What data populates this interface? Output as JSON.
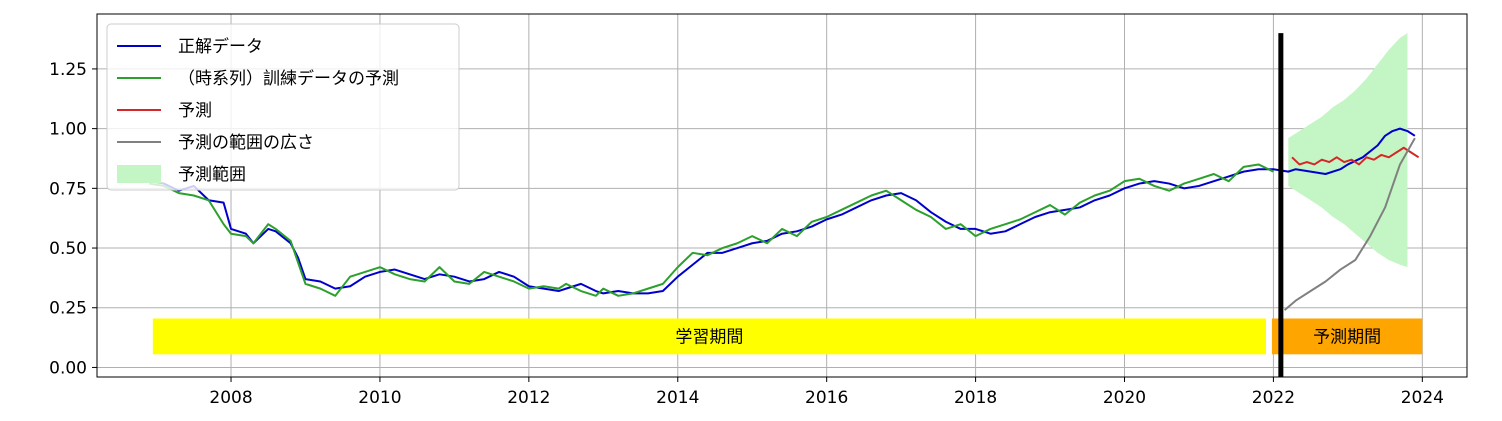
{
  "chart_data": {
    "type": "line",
    "title": "",
    "xlabel": "",
    "ylabel": "",
    "xlim": [
      2006.2,
      2024.6
    ],
    "ylim": [
      -0.04,
      1.48
    ],
    "x_ticks": [
      2008,
      2010,
      2012,
      2014,
      2016,
      2018,
      2020,
      2022,
      2024
    ],
    "y_ticks": [
      0.0,
      0.25,
      0.5,
      0.75,
      1.0,
      1.25
    ],
    "y_tick_labels": [
      "0.00",
      "0.25",
      "0.50",
      "0.75",
      "1.00",
      "1.25"
    ],
    "grid": true,
    "legend_position": "top-left",
    "legend": [
      {
        "label": "正解データ",
        "color": "#0000cc",
        "kind": "line"
      },
      {
        "label": "（時系列）訓練データの予測",
        "color": "#2ca02c",
        "kind": "line"
      },
      {
        "label": "予測",
        "color": "#d62728",
        "kind": "line"
      },
      {
        "label": "予測の範囲の広さ",
        "color": "#808080",
        "kind": "line"
      },
      {
        "label": "予測範囲",
        "color": "#c4f5c4",
        "kind": "area"
      }
    ],
    "annotations": [
      {
        "label": "学習期間",
        "x_start": 2006.95,
        "x_end": 2021.9,
        "y_bottom": 0.055,
        "y_top": 0.205,
        "color": "#ffff00"
      },
      {
        "label": "予測期間",
        "x_start": 2021.98,
        "x_end": 2024.0,
        "y_bottom": 0.055,
        "y_top": 0.205,
        "color": "#ffa500"
      }
    ],
    "vline": {
      "x": 2022.1,
      "y_top": 1.4,
      "color": "#000000"
    },
    "series": [
      {
        "name": "正解データ",
        "color": "#0000cc",
        "points": [
          [
            2006.9,
            0.78
          ],
          [
            2007.1,
            0.77
          ],
          [
            2007.3,
            0.74
          ],
          [
            2007.5,
            0.76
          ],
          [
            2007.7,
            0.7
          ],
          [
            2007.9,
            0.69
          ],
          [
            2008.0,
            0.58
          ],
          [
            2008.2,
            0.56
          ],
          [
            2008.3,
            0.52
          ],
          [
            2008.5,
            0.58
          ],
          [
            2008.6,
            0.57
          ],
          [
            2008.8,
            0.52
          ],
          [
            2008.9,
            0.46
          ],
          [
            2009.0,
            0.37
          ],
          [
            2009.2,
            0.36
          ],
          [
            2009.4,
            0.33
          ],
          [
            2009.6,
            0.34
          ],
          [
            2009.8,
            0.38
          ],
          [
            2010.0,
            0.4
          ],
          [
            2010.2,
            0.41
          ],
          [
            2010.4,
            0.39
          ],
          [
            2010.6,
            0.37
          ],
          [
            2010.8,
            0.39
          ],
          [
            2011.0,
            0.38
          ],
          [
            2011.2,
            0.36
          ],
          [
            2011.4,
            0.37
          ],
          [
            2011.6,
            0.4
          ],
          [
            2011.8,
            0.38
          ],
          [
            2012.0,
            0.34
          ],
          [
            2012.2,
            0.33
          ],
          [
            2012.4,
            0.32
          ],
          [
            2012.5,
            0.33
          ],
          [
            2012.7,
            0.35
          ],
          [
            2012.9,
            0.32
          ],
          [
            2013.0,
            0.31
          ],
          [
            2013.2,
            0.32
          ],
          [
            2013.4,
            0.31
          ],
          [
            2013.6,
            0.31
          ],
          [
            2013.8,
            0.32
          ],
          [
            2014.0,
            0.38
          ],
          [
            2014.2,
            0.43
          ],
          [
            2014.4,
            0.48
          ],
          [
            2014.6,
            0.48
          ],
          [
            2014.8,
            0.5
          ],
          [
            2015.0,
            0.52
          ],
          [
            2015.2,
            0.53
          ],
          [
            2015.4,
            0.56
          ],
          [
            2015.6,
            0.57
          ],
          [
            2015.8,
            0.59
          ],
          [
            2016.0,
            0.62
          ],
          [
            2016.2,
            0.64
          ],
          [
            2016.4,
            0.67
          ],
          [
            2016.6,
            0.7
          ],
          [
            2016.8,
            0.72
          ],
          [
            2017.0,
            0.73
          ],
          [
            2017.2,
            0.7
          ],
          [
            2017.4,
            0.65
          ],
          [
            2017.6,
            0.61
          ],
          [
            2017.8,
            0.58
          ],
          [
            2018.0,
            0.58
          ],
          [
            2018.2,
            0.56
          ],
          [
            2018.4,
            0.57
          ],
          [
            2018.6,
            0.6
          ],
          [
            2018.8,
            0.63
          ],
          [
            2019.0,
            0.65
          ],
          [
            2019.2,
            0.66
          ],
          [
            2019.4,
            0.67
          ],
          [
            2019.6,
            0.7
          ],
          [
            2019.8,
            0.72
          ],
          [
            2020.0,
            0.75
          ],
          [
            2020.2,
            0.77
          ],
          [
            2020.4,
            0.78
          ],
          [
            2020.6,
            0.77
          ],
          [
            2020.8,
            0.75
          ],
          [
            2021.0,
            0.76
          ],
          [
            2021.2,
            0.78
          ],
          [
            2021.4,
            0.8
          ],
          [
            2021.6,
            0.82
          ],
          [
            2021.8,
            0.83
          ],
          [
            2022.0,
            0.83
          ],
          [
            2022.2,
            0.82
          ],
          [
            2022.3,
            0.83
          ],
          [
            2022.5,
            0.82
          ],
          [
            2022.7,
            0.81
          ],
          [
            2022.9,
            0.83
          ],
          [
            2023.0,
            0.85
          ],
          [
            2023.2,
            0.88
          ],
          [
            2023.4,
            0.93
          ],
          [
            2023.5,
            0.97
          ],
          [
            2023.6,
            0.99
          ],
          [
            2023.7,
            1.0
          ],
          [
            2023.8,
            0.99
          ],
          [
            2023.9,
            0.97
          ]
        ]
      },
      {
        "name": "（時系列）訓練データの予測",
        "color": "#2ca02c",
        "points": [
          [
            2006.9,
            0.77
          ],
          [
            2007.1,
            0.76
          ],
          [
            2007.3,
            0.73
          ],
          [
            2007.5,
            0.72
          ],
          [
            2007.7,
            0.7
          ],
          [
            2007.9,
            0.6
          ],
          [
            2008.0,
            0.56
          ],
          [
            2008.2,
            0.55
          ],
          [
            2008.3,
            0.52
          ],
          [
            2008.5,
            0.6
          ],
          [
            2008.6,
            0.58
          ],
          [
            2008.8,
            0.53
          ],
          [
            2008.9,
            0.44
          ],
          [
            2009.0,
            0.35
          ],
          [
            2009.2,
            0.33
          ],
          [
            2009.4,
            0.3
          ],
          [
            2009.6,
            0.38
          ],
          [
            2009.8,
            0.4
          ],
          [
            2010.0,
            0.42
          ],
          [
            2010.2,
            0.39
          ],
          [
            2010.4,
            0.37
          ],
          [
            2010.6,
            0.36
          ],
          [
            2010.8,
            0.42
          ],
          [
            2011.0,
            0.36
          ],
          [
            2011.2,
            0.35
          ],
          [
            2011.4,
            0.4
          ],
          [
            2011.6,
            0.38
          ],
          [
            2011.8,
            0.36
          ],
          [
            2012.0,
            0.33
          ],
          [
            2012.2,
            0.34
          ],
          [
            2012.4,
            0.33
          ],
          [
            2012.5,
            0.35
          ],
          [
            2012.7,
            0.32
          ],
          [
            2012.9,
            0.3
          ],
          [
            2013.0,
            0.33
          ],
          [
            2013.2,
            0.3
          ],
          [
            2013.4,
            0.31
          ],
          [
            2013.6,
            0.33
          ],
          [
            2013.8,
            0.35
          ],
          [
            2014.0,
            0.42
          ],
          [
            2014.2,
            0.48
          ],
          [
            2014.4,
            0.47
          ],
          [
            2014.6,
            0.5
          ],
          [
            2014.8,
            0.52
          ],
          [
            2015.0,
            0.55
          ],
          [
            2015.2,
            0.52
          ],
          [
            2015.4,
            0.58
          ],
          [
            2015.6,
            0.55
          ],
          [
            2015.8,
            0.61
          ],
          [
            2016.0,
            0.63
          ],
          [
            2016.2,
            0.66
          ],
          [
            2016.4,
            0.69
          ],
          [
            2016.6,
            0.72
          ],
          [
            2016.8,
            0.74
          ],
          [
            2017.0,
            0.7
          ],
          [
            2017.2,
            0.66
          ],
          [
            2017.4,
            0.63
          ],
          [
            2017.6,
            0.58
          ],
          [
            2017.8,
            0.6
          ],
          [
            2018.0,
            0.55
          ],
          [
            2018.2,
            0.58
          ],
          [
            2018.4,
            0.6
          ],
          [
            2018.6,
            0.62
          ],
          [
            2018.8,
            0.65
          ],
          [
            2019.0,
            0.68
          ],
          [
            2019.2,
            0.64
          ],
          [
            2019.4,
            0.69
          ],
          [
            2019.6,
            0.72
          ],
          [
            2019.8,
            0.74
          ],
          [
            2020.0,
            0.78
          ],
          [
            2020.2,
            0.79
          ],
          [
            2020.4,
            0.76
          ],
          [
            2020.6,
            0.74
          ],
          [
            2020.8,
            0.77
          ],
          [
            2021.0,
            0.79
          ],
          [
            2021.2,
            0.81
          ],
          [
            2021.4,
            0.78
          ],
          [
            2021.6,
            0.84
          ],
          [
            2021.8,
            0.85
          ],
          [
            2022.0,
            0.82
          ]
        ]
      },
      {
        "name": "予測",
        "color": "#d62728",
        "points": [
          [
            2022.25,
            0.88
          ],
          [
            2022.35,
            0.85
          ],
          [
            2022.45,
            0.86
          ],
          [
            2022.55,
            0.85
          ],
          [
            2022.65,
            0.87
          ],
          [
            2022.75,
            0.86
          ],
          [
            2022.85,
            0.88
          ],
          [
            2022.95,
            0.86
          ],
          [
            2023.05,
            0.87
          ],
          [
            2023.15,
            0.85
          ],
          [
            2023.25,
            0.88
          ],
          [
            2023.35,
            0.87
          ],
          [
            2023.45,
            0.89
          ],
          [
            2023.55,
            0.88
          ],
          [
            2023.65,
            0.9
          ],
          [
            2023.75,
            0.92
          ],
          [
            2023.85,
            0.9
          ],
          [
            2023.95,
            0.88
          ]
        ]
      },
      {
        "name": "予測の範囲の広さ",
        "color": "#808080",
        "points": [
          [
            2022.15,
            0.24
          ],
          [
            2022.3,
            0.28
          ],
          [
            2022.5,
            0.32
          ],
          [
            2022.7,
            0.36
          ],
          [
            2022.9,
            0.41
          ],
          [
            2023.1,
            0.45
          ],
          [
            2023.3,
            0.55
          ],
          [
            2023.5,
            0.67
          ],
          [
            2023.7,
            0.85
          ],
          [
            2023.9,
            0.96
          ]
        ]
      }
    ],
    "bands": [
      {
        "name": "予測範囲",
        "color": "#c4f5c4",
        "x": [
          2022.2,
          2022.35,
          2022.5,
          2022.65,
          2022.8,
          2022.95,
          2023.1,
          2023.25,
          2023.4,
          2023.55,
          2023.7,
          2023.8
        ],
        "upper": [
          0.96,
          0.99,
          1.02,
          1.05,
          1.09,
          1.12,
          1.16,
          1.21,
          1.27,
          1.33,
          1.38,
          1.4
        ],
        "lower": [
          0.76,
          0.73,
          0.7,
          0.67,
          0.63,
          0.6,
          0.56,
          0.52,
          0.48,
          0.45,
          0.43,
          0.42
        ]
      }
    ]
  }
}
